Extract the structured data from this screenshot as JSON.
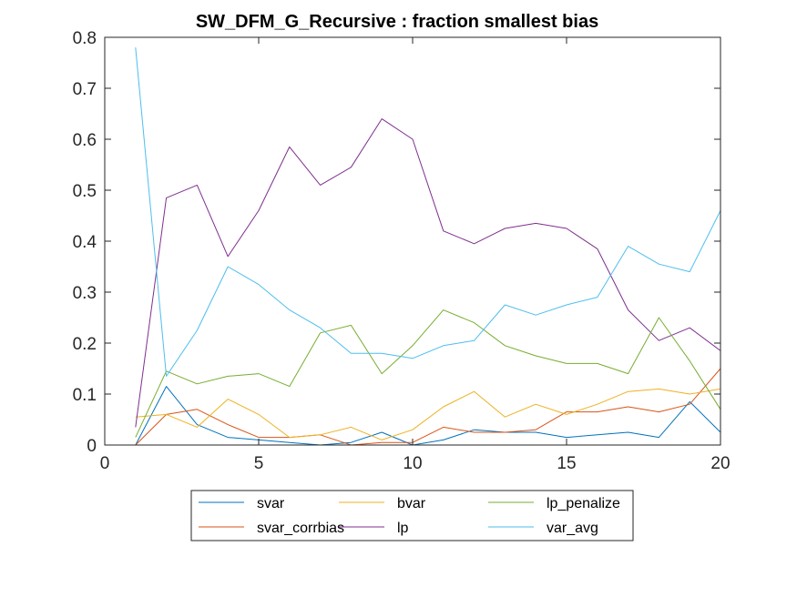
{
  "chart_data": {
    "type": "line",
    "title": "SW_DFM_G_Recursive : fraction smallest bias",
    "xlabel": "",
    "ylabel": "",
    "xlim": [
      0,
      20
    ],
    "ylim": [
      0,
      0.8
    ],
    "xticks": [
      0,
      5,
      10,
      15,
      20
    ],
    "yticks": [
      0,
      0.1,
      0.2,
      0.3,
      0.4,
      0.5,
      0.6,
      0.7,
      0.8
    ],
    "xtick_labels": [
      "0",
      "5",
      "10",
      "15",
      "20"
    ],
    "ytick_labels": [
      "0",
      "0.1",
      "0.2",
      "0.3",
      "0.4",
      "0.5",
      "0.6",
      "0.7",
      "0.8"
    ],
    "grid": false,
    "legend_position": "bottom",
    "x": [
      1,
      2,
      3,
      4,
      5,
      6,
      7,
      8,
      9,
      10,
      11,
      12,
      13,
      14,
      15,
      16,
      17,
      18,
      19,
      20
    ],
    "series": [
      {
        "name": "svar",
        "color": "#0072BD",
        "values": [
          0.0,
          0.115,
          0.04,
          0.015,
          0.01,
          0.005,
          0.0,
          0.005,
          0.025,
          0.0,
          0.01,
          0.03,
          0.025,
          0.025,
          0.015,
          0.02,
          0.025,
          0.015,
          0.085,
          0.025
        ]
      },
      {
        "name": "svar_corrbias",
        "color": "#D95319",
        "values": [
          0.0,
          0.06,
          0.07,
          0.04,
          0.015,
          0.015,
          0.02,
          0.0,
          0.005,
          0.005,
          0.035,
          0.025,
          0.025,
          0.03,
          0.065,
          0.065,
          0.075,
          0.065,
          0.08,
          0.15
        ]
      },
      {
        "name": "bvar",
        "color": "#EDB120",
        "values": [
          0.055,
          0.06,
          0.035,
          0.09,
          0.06,
          0.015,
          0.02,
          0.035,
          0.01,
          0.03,
          0.075,
          0.105,
          0.055,
          0.08,
          0.06,
          0.08,
          0.105,
          0.11,
          0.1,
          0.11
        ]
      },
      {
        "name": "lp",
        "color": "#7E2F8E",
        "values": [
          0.035,
          0.485,
          0.51,
          0.37,
          0.46,
          0.585,
          0.51,
          0.545,
          0.64,
          0.6,
          0.42,
          0.395,
          0.425,
          0.435,
          0.425,
          0.385,
          0.265,
          0.205,
          0.23,
          0.185
        ]
      },
      {
        "name": "lp_penalize",
        "color": "#77AC30",
        "values": [
          0.015,
          0.145,
          0.12,
          0.135,
          0.14,
          0.115,
          0.22,
          0.235,
          0.14,
          0.195,
          0.265,
          0.24,
          0.195,
          0.175,
          0.16,
          0.16,
          0.14,
          0.25,
          0.165,
          0.07
        ]
      },
      {
        "name": "var_avg",
        "color": "#4DBEEE",
        "values": [
          0.78,
          0.135,
          0.225,
          0.35,
          0.315,
          0.265,
          0.23,
          0.18,
          0.18,
          0.17,
          0.195,
          0.205,
          0.275,
          0.255,
          0.275,
          0.29,
          0.39,
          0.355,
          0.34,
          0.46
        ]
      }
    ],
    "legend_order": [
      [
        "svar",
        "bvar",
        "lp_penalize"
      ],
      [
        "svar_corrbias",
        "lp",
        "var_avg"
      ]
    ]
  }
}
